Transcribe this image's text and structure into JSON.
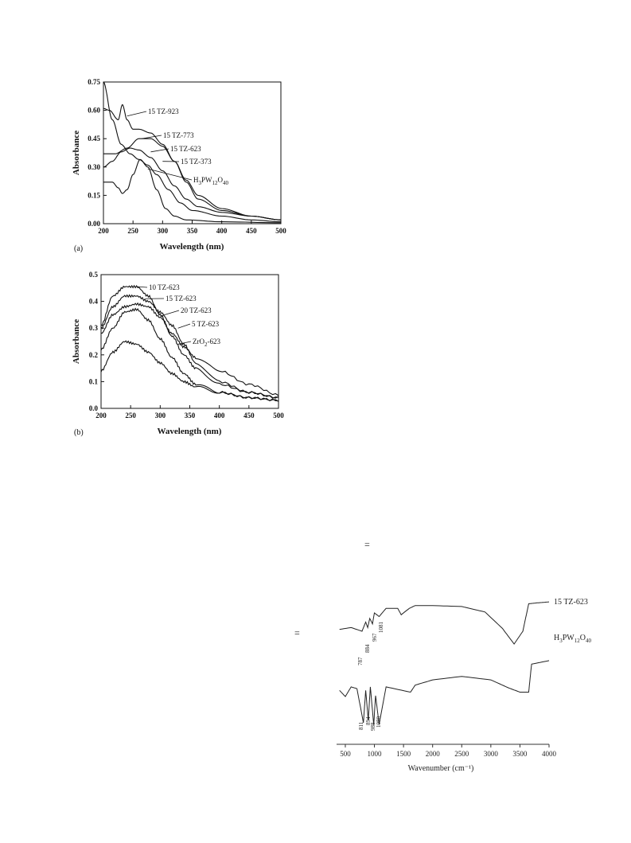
{
  "stray_marks": [
    "=",
    "="
  ],
  "chart_data": [
    {
      "type": "line",
      "panel": "(a)",
      "xlabel": "Wavelength (nm)",
      "ylabel": "Absorbance",
      "xlim": [
        200,
        500
      ],
      "ylim": [
        0,
        0.75
      ],
      "xticks": [
        "200",
        "250",
        "300",
        "350",
        "400",
        "450",
        "500"
      ],
      "yticks": [
        "0.00",
        "0.15",
        "0.30",
        "0.45",
        "0.60",
        "0.75"
      ],
      "legend_position": "inline leader lines",
      "series": [
        {
          "name": "15 TZ-923",
          "x": [
            200,
            210,
            225,
            232,
            240,
            250,
            260,
            280,
            300,
            320,
            340,
            360,
            400,
            450,
            500
          ],
          "y": [
            0.61,
            0.6,
            0.55,
            0.63,
            0.55,
            0.5,
            0.5,
            0.48,
            0.42,
            0.33,
            0.22,
            0.13,
            0.07,
            0.04,
            0.02
          ]
        },
        {
          "name": "15 TZ-773",
          "x": [
            200,
            220,
            240,
            260,
            280,
            300,
            320,
            340,
            360,
            400,
            450,
            500
          ],
          "y": [
            0.37,
            0.37,
            0.4,
            0.45,
            0.45,
            0.41,
            0.33,
            0.23,
            0.15,
            0.08,
            0.04,
            0.02
          ]
        },
        {
          "name": "15 TZ-623",
          "x": [
            200,
            215,
            230,
            245,
            260,
            280,
            300,
            320,
            340,
            360,
            400,
            450,
            500
          ],
          "y": [
            0.3,
            0.33,
            0.38,
            0.4,
            0.39,
            0.35,
            0.28,
            0.2,
            0.13,
            0.09,
            0.06,
            0.04,
            0.02
          ]
        },
        {
          "name": "15 TZ-373",
          "x": [
            200,
            215,
            230,
            245,
            260,
            275,
            290,
            310,
            330,
            350,
            400,
            450,
            500
          ],
          "y": [
            0.75,
            0.55,
            0.42,
            0.37,
            0.34,
            0.31,
            0.26,
            0.18,
            0.11,
            0.07,
            0.04,
            0.02,
            0.01
          ]
        },
        {
          "name": "H3PW12O40",
          "x": [
            200,
            215,
            225,
            232,
            240,
            250,
            262,
            275,
            290,
            305,
            320,
            340,
            400,
            500
          ],
          "y": [
            0.22,
            0.22,
            0.19,
            0.16,
            0.18,
            0.26,
            0.34,
            0.3,
            0.18,
            0.08,
            0.04,
            0.02,
            0.01,
            0.005
          ]
        }
      ]
    },
    {
      "type": "line",
      "panel": "(b)",
      "xlabel": "Wavelength (nm)",
      "ylabel": "Absorbance",
      "xlim": [
        200,
        500
      ],
      "ylim": [
        0,
        0.5
      ],
      "xticks": [
        "200",
        "250",
        "300",
        "350",
        "400",
        "450",
        "500"
      ],
      "yticks": [
        "0.0",
        "0.1",
        "0.2",
        "0.3",
        "0.4",
        "0.5"
      ],
      "legend_position": "inline leader lines",
      "series": [
        {
          "name": "10 TZ-623",
          "x": [
            200,
            220,
            240,
            260,
            280,
            300,
            320,
            340,
            360,
            400,
            450,
            500
          ],
          "y": [
            0.31,
            0.42,
            0.455,
            0.455,
            0.42,
            0.35,
            0.27,
            0.2,
            0.15,
            0.09,
            0.06,
            0.04
          ]
        },
        {
          "name": "15 TZ-623",
          "x": [
            200,
            220,
            240,
            260,
            280,
            300,
            320,
            340,
            360,
            400,
            450,
            500
          ],
          "y": [
            0.3,
            0.38,
            0.42,
            0.42,
            0.4,
            0.36,
            0.31,
            0.24,
            0.17,
            0.1,
            0.06,
            0.04
          ]
        },
        {
          "name": "20 TZ-623",
          "x": [
            200,
            220,
            240,
            260,
            280,
            300,
            320,
            340,
            360,
            400,
            450,
            500
          ],
          "y": [
            0.28,
            0.35,
            0.38,
            0.39,
            0.38,
            0.34,
            0.28,
            0.23,
            0.19,
            0.14,
            0.09,
            0.05
          ]
        },
        {
          "name": "5 TZ-623",
          "x": [
            200,
            220,
            240,
            260,
            280,
            300,
            320,
            340,
            360,
            400,
            450,
            500
          ],
          "y": [
            0.22,
            0.3,
            0.36,
            0.37,
            0.33,
            0.26,
            0.19,
            0.13,
            0.09,
            0.06,
            0.04,
            0.03
          ]
        },
        {
          "name": "ZrO2-623",
          "x": [
            200,
            220,
            240,
            260,
            280,
            300,
            320,
            340,
            360,
            400,
            450,
            500
          ],
          "y": [
            0.14,
            0.21,
            0.25,
            0.24,
            0.21,
            0.17,
            0.13,
            0.1,
            0.08,
            0.06,
            0.04,
            0.03
          ]
        }
      ]
    },
    {
      "type": "line",
      "xlabel": "Wavenumber (cm⁻¹)",
      "ylabel": "",
      "xlim": [
        350,
        4000
      ],
      "xticks": [
        "500",
        "1000",
        "1500",
        "2000",
        "2500",
        "3000",
        "3500",
        "4000"
      ],
      "yaxis": "unlabelled (offset spectra)",
      "series": [
        {
          "name": "15 TZ-623",
          "x": [
            400,
            600,
            787,
            850,
            884,
            920,
            967,
            1000,
            1081,
            1200,
            1400,
            1460,
            1600,
            1700,
            2000,
            2500,
            2900,
            3200,
            3400,
            3550,
            3650,
            3800,
            4000
          ],
          "y": [
            0.74,
            0.76,
            0.72,
            0.82,
            0.76,
            0.86,
            0.8,
            0.92,
            0.88,
            0.97,
            0.97,
            0.9,
            0.97,
            1.0,
            1.0,
            0.99,
            0.93,
            0.75,
            0.58,
            0.72,
            1.02,
            1.03,
            1.04
          ]
        },
        {
          "name": "H3PW12O40",
          "x": [
            400,
            500,
            600,
            700,
            811,
            850,
            894,
            930,
            988,
            1020,
            1080,
            1200,
            1620,
            1700,
            2000,
            2500,
            3000,
            3300,
            3500,
            3650,
            3700,
            4000
          ],
          "y": [
            0.62,
            0.55,
            0.66,
            0.64,
            0.25,
            0.62,
            0.28,
            0.66,
            0.23,
            0.56,
            0.23,
            0.66,
            0.6,
            0.68,
            0.74,
            0.78,
            0.74,
            0.65,
            0.6,
            0.6,
            0.92,
            0.96
          ]
        }
      ],
      "peak_labels": {
        "15 TZ-623": [
          "787",
          "884",
          "967",
          "1081"
        ],
        "H3PW12O40": [
          "811",
          "894",
          "988",
          "1080"
        ]
      }
    }
  ]
}
